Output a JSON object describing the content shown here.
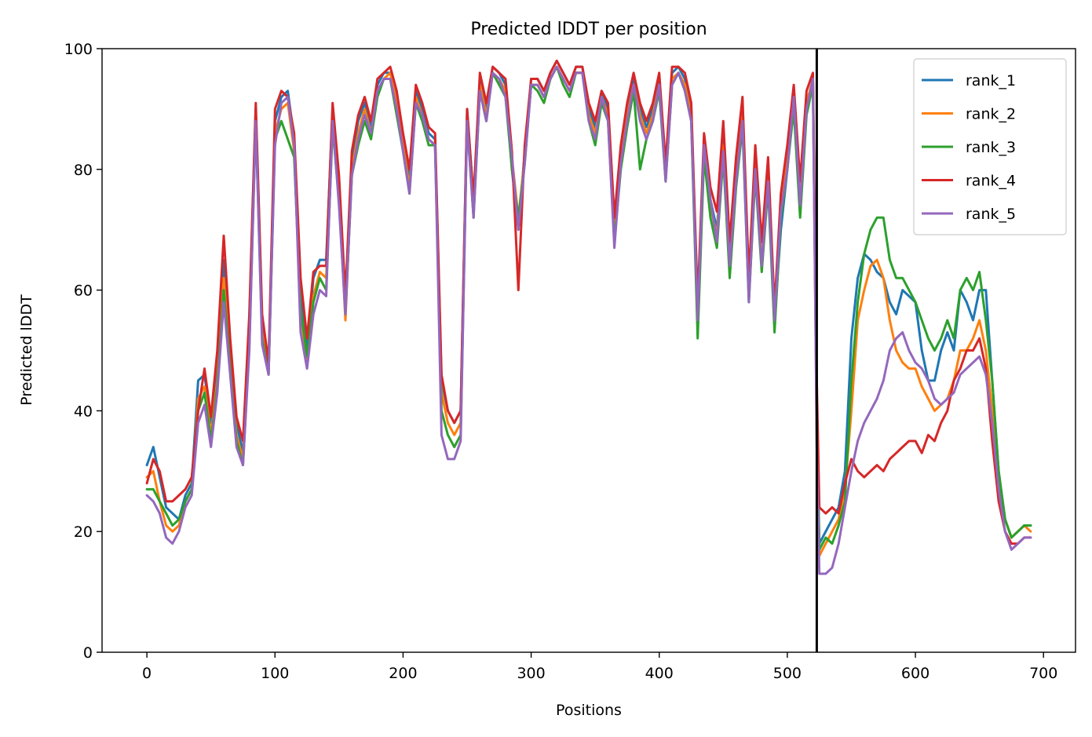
{
  "chart_data": {
    "type": "line",
    "title": "Predicted lDDT per position",
    "xlabel": "Positions",
    "ylabel": "Predicted lDDT",
    "xlim": [
      -35,
      725
    ],
    "ylim": [
      0,
      100
    ],
    "xticks": [
      0,
      100,
      200,
      300,
      400,
      500,
      600,
      700
    ],
    "yticks": [
      0,
      20,
      40,
      60,
      80,
      100
    ],
    "xtick_labels": [
      "0",
      "100",
      "200",
      "300",
      "400",
      "500",
      "600",
      "700"
    ],
    "ytick_labels": [
      "0",
      "20",
      "40",
      "60",
      "80",
      "100"
    ],
    "grid": false,
    "legend_position": "top-right",
    "vline_x": 523,
    "vline_color": "#000000",
    "x": [
      0,
      5,
      10,
      15,
      20,
      25,
      30,
      35,
      40,
      45,
      50,
      55,
      60,
      65,
      70,
      75,
      80,
      85,
      90,
      95,
      100,
      105,
      110,
      115,
      120,
      125,
      130,
      135,
      140,
      145,
      150,
      155,
      160,
      165,
      170,
      175,
      180,
      185,
      190,
      195,
      200,
      205,
      210,
      215,
      220,
      225,
      230,
      235,
      240,
      245,
      250,
      255,
      260,
      265,
      270,
      275,
      280,
      285,
      290,
      295,
      300,
      305,
      310,
      315,
      320,
      325,
      330,
      335,
      340,
      345,
      350,
      355,
      360,
      365,
      370,
      375,
      380,
      385,
      390,
      395,
      400,
      405,
      410,
      415,
      420,
      425,
      430,
      435,
      440,
      445,
      450,
      455,
      460,
      465,
      470,
      475,
      480,
      485,
      490,
      495,
      500,
      505,
      510,
      515,
      520,
      523,
      525,
      530,
      535,
      540,
      545,
      550,
      555,
      560,
      565,
      570,
      575,
      580,
      585,
      590,
      595,
      600,
      605,
      610,
      615,
      620,
      625,
      630,
      635,
      640,
      645,
      650,
      655,
      660,
      665,
      670,
      675,
      680,
      685,
      690
    ],
    "series": [
      {
        "name": "rank_1",
        "color": "#1f77b4",
        "values": [
          31,
          34,
          29,
          24,
          23,
          22,
          26,
          28,
          45,
          46,
          38,
          48,
          65,
          50,
          38,
          33,
          55,
          90,
          55,
          47,
          88,
          92,
          93,
          85,
          60,
          50,
          62,
          65,
          65,
          90,
          78,
          57,
          82,
          88,
          91,
          87,
          94,
          96,
          96,
          92,
          85,
          78,
          93,
          90,
          86,
          85,
          45,
          40,
          38,
          40,
          90,
          75,
          95,
          90,
          97,
          96,
          94,
          80,
          70,
          83,
          95,
          95,
          93,
          96,
          98,
          96,
          94,
          97,
          97,
          90,
          87,
          93,
          90,
          70,
          83,
          90,
          95,
          90,
          87,
          90,
          95,
          80,
          96,
          97,
          95,
          90,
          55,
          85,
          75,
          70,
          85,
          65,
          80,
          90,
          60,
          82,
          66,
          80,
          55,
          70,
          80,
          92,
          75,
          90,
          95,
          40,
          18,
          20,
          22,
          24,
          30,
          52,
          62,
          66,
          65,
          63,
          62,
          58,
          56,
          60,
          59,
          58,
          50,
          45,
          45,
          50,
          53,
          50,
          60,
          58,
          55,
          60,
          60,
          45,
          30,
          22,
          19,
          20,
          21,
          21
        ]
      },
      {
        "name": "rank_2",
        "color": "#ff7f0e",
        "values": [
          29,
          30,
          25,
          21,
          20,
          21,
          25,
          27,
          42,
          44,
          36,
          45,
          62,
          48,
          36,
          32,
          52,
          89,
          53,
          46,
          86,
          90,
          91,
          83,
          56,
          48,
          59,
          63,
          62,
          88,
          76,
          55,
          80,
          86,
          90,
          86,
          93,
          95,
          96,
          91,
          84,
          77,
          92,
          89,
          85,
          84,
          43,
          38,
          36,
          38,
          89,
          73,
          94,
          89,
          96,
          95,
          93,
          82,
          72,
          82,
          94,
          94,
          92,
          95,
          97,
          95,
          93,
          96,
          96,
          89,
          86,
          92,
          89,
          69,
          82,
          89,
          94,
          89,
          86,
          89,
          94,
          79,
          95,
          96,
          94,
          89,
          54,
          84,
          74,
          69,
          84,
          64,
          79,
          89,
          59,
          81,
          65,
          79,
          54,
          74,
          82,
          93,
          76,
          91,
          95,
          35,
          16,
          18,
          20,
          22,
          27,
          40,
          55,
          60,
          64,
          65,
          62,
          55,
          50,
          48,
          47,
          47,
          44,
          42,
          40,
          41,
          42,
          45,
          50,
          50,
          52,
          55,
          50,
          40,
          28,
          22,
          19,
          20,
          21,
          20
        ]
      },
      {
        "name": "rank_3",
        "color": "#2ca02c",
        "values": [
          27,
          27,
          25,
          23,
          21,
          22,
          25,
          27,
          40,
          43,
          35,
          44,
          60,
          47,
          35,
          31,
          51,
          88,
          52,
          46,
          85,
          88,
          85,
          82,
          57,
          49,
          58,
          62,
          60,
          87,
          75,
          56,
          79,
          84,
          88,
          85,
          92,
          95,
          95,
          89,
          83,
          76,
          91,
          88,
          84,
          84,
          40,
          36,
          34,
          36,
          88,
          72,
          93,
          88,
          96,
          94,
          92,
          80,
          72,
          81,
          94,
          93,
          91,
          95,
          97,
          94,
          92,
          96,
          96,
          88,
          84,
          91,
          88,
          68,
          80,
          87,
          93,
          80,
          85,
          88,
          93,
          78,
          94,
          96,
          93,
          88,
          52,
          82,
          72,
          67,
          82,
          62,
          77,
          87,
          58,
          79,
          63,
          77,
          53,
          72,
          80,
          90,
          72,
          89,
          94,
          38,
          17,
          19,
          18,
          21,
          25,
          45,
          58,
          66,
          70,
          72,
          72,
          65,
          62,
          62,
          60,
          58,
          55,
          52,
          50,
          52,
          55,
          52,
          60,
          62,
          60,
          63,
          55,
          45,
          30,
          22,
          19,
          20,
          21,
          21
        ]
      },
      {
        "name": "rank_4",
        "color": "#d62728",
        "values": [
          28,
          32,
          30,
          25,
          25,
          26,
          27,
          29,
          40,
          47,
          39,
          50,
          69,
          52,
          39,
          35,
          56,
          91,
          56,
          48,
          90,
          93,
          92,
          86,
          62,
          52,
          63,
          64,
          64,
          91,
          79,
          59,
          83,
          89,
          92,
          88,
          95,
          96,
          97,
          93,
          86,
          80,
          94,
          91,
          87,
          86,
          46,
          40,
          38,
          40,
          90,
          75,
          96,
          91,
          97,
          96,
          95,
          83,
          60,
          84,
          95,
          95,
          93,
          96,
          98,
          96,
          94,
          97,
          97,
          91,
          88,
          93,
          91,
          72,
          84,
          91,
          96,
          91,
          88,
          91,
          96,
          81,
          97,
          97,
          96,
          91,
          58,
          86,
          77,
          73,
          88,
          68,
          82,
          92,
          62,
          84,
          68,
          82,
          57,
          76,
          84,
          94,
          78,
          93,
          96,
          45,
          24,
          23,
          24,
          23,
          28,
          32,
          30,
          29,
          30,
          31,
          30,
          32,
          33,
          34,
          35,
          35,
          33,
          36,
          35,
          38,
          40,
          45,
          47,
          50,
          50,
          52,
          47,
          35,
          25,
          20,
          18,
          18,
          19,
          19
        ]
      },
      {
        "name": "rank_5",
        "color": "#9467bd",
        "values": [
          26,
          25,
          23,
          19,
          18,
          20,
          24,
          26,
          38,
          41,
          34,
          43,
          58,
          46,
          34,
          31,
          50,
          88,
          51,
          46,
          84,
          91,
          92,
          84,
          53,
          47,
          56,
          60,
          59,
          88,
          74,
          56,
          79,
          85,
          89,
          86,
          93,
          95,
          95,
          90,
          83,
          76,
          91,
          89,
          85,
          84,
          36,
          32,
          32,
          35,
          88,
          72,
          93,
          88,
          96,
          95,
          92,
          82,
          70,
          81,
          94,
          94,
          92,
          95,
          97,
          95,
          93,
          96,
          96,
          88,
          85,
          92,
          88,
          67,
          81,
          88,
          94,
          88,
          85,
          88,
          94,
          78,
          94,
          96,
          93,
          88,
          55,
          84,
          75,
          68,
          83,
          64,
          78,
          88,
          58,
          80,
          64,
          78,
          55,
          73,
          80,
          92,
          74,
          90,
          95,
          34,
          13,
          13,
          14,
          18,
          24,
          30,
          35,
          38,
          40,
          42,
          45,
          50,
          52,
          53,
          50,
          48,
          47,
          45,
          42,
          41,
          42,
          43,
          46,
          47,
          48,
          49,
          46,
          38,
          27,
          20,
          17,
          18,
          19,
          19
        ]
      }
    ]
  }
}
